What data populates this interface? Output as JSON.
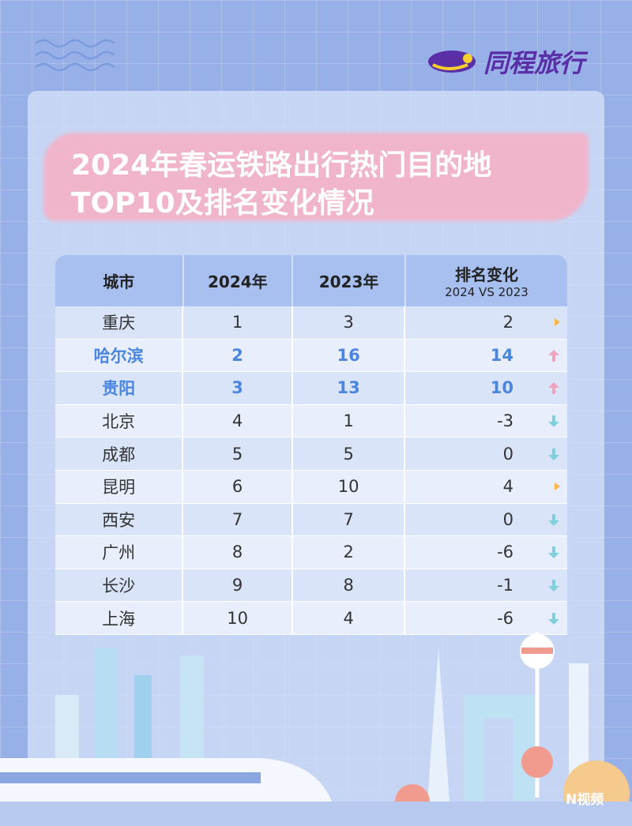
{
  "brand": "同程旅行",
  "title": [
    "2024年春运铁路出行热门目的地",
    "TOP10及排名变化情况"
  ],
  "table": {
    "headers": [
      "城市",
      "2024年",
      "2023年",
      "排名变化"
    ],
    "subheader": "2024 VS 2023",
    "rows": [
      [
        "重庆",
        1,
        3,
        2
      ],
      [
        "哈尔滨",
        2,
        16,
        14
      ],
      [
        "贵阳",
        3,
        13,
        10
      ],
      [
        "北京",
        4,
        1,
        -3
      ],
      [
        "成都",
        5,
        5,
        0
      ],
      [
        "昆明",
        6,
        10,
        4
      ],
      [
        "西安",
        7,
        7,
        0
      ],
      [
        "广州",
        8,
        2,
        -6
      ],
      [
        "长沙",
        9,
        8,
        -1
      ],
      [
        "上海",
        10,
        4,
        -6
      ]
    ],
    "arrows": [
      "right",
      "up",
      "up",
      "down",
      "down",
      "right",
      "down",
      "down",
      "down",
      "down"
    ],
    "highlight": [
      false,
      true,
      true,
      false,
      false,
      false,
      false,
      false,
      false,
      false
    ],
    "highlight_color": "#4a86e0",
    "arrow_colors": {
      "right": "#f5b54a",
      "up": "#f2a2bd",
      "down": "#7fd0dc"
    }
  },
  "footer": "N视频"
}
